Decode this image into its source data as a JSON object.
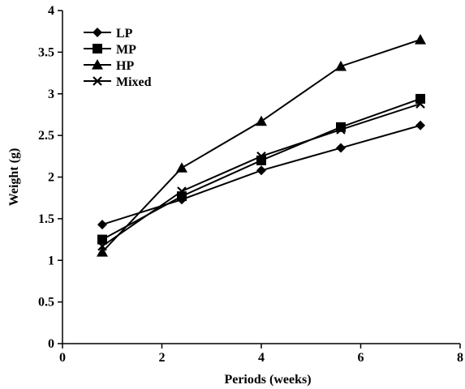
{
  "chart_data": {
    "type": "line",
    "title": "",
    "xlabel": "Periods (weeks)",
    "ylabel": "Weight (g)",
    "xlim": [
      0,
      8
    ],
    "ylim": [
      0,
      4
    ],
    "x_ticks": [
      "0",
      "2",
      "4",
      "6",
      "8"
    ],
    "y_ticks": [
      "0",
      "0.5",
      "1",
      "1.5",
      "2",
      "2.5",
      "3",
      "3.5",
      "4"
    ],
    "grid": false,
    "legend_position": "top-left",
    "x": [
      0.8,
      2.4,
      4.0,
      5.6,
      7.2
    ],
    "series": [
      {
        "name": "LP",
        "marker": "diamond",
        "values": [
          1.43,
          1.73,
          2.08,
          2.35,
          2.62
        ]
      },
      {
        "name": "MP",
        "marker": "square",
        "values": [
          1.25,
          1.77,
          2.2,
          2.6,
          2.94
        ]
      },
      {
        "name": "HP",
        "marker": "triangle",
        "values": [
          1.1,
          2.11,
          2.67,
          3.33,
          3.65
        ]
      },
      {
        "name": "Mixed",
        "marker": "x",
        "values": [
          1.17,
          1.83,
          2.25,
          2.57,
          2.88
        ]
      }
    ]
  }
}
